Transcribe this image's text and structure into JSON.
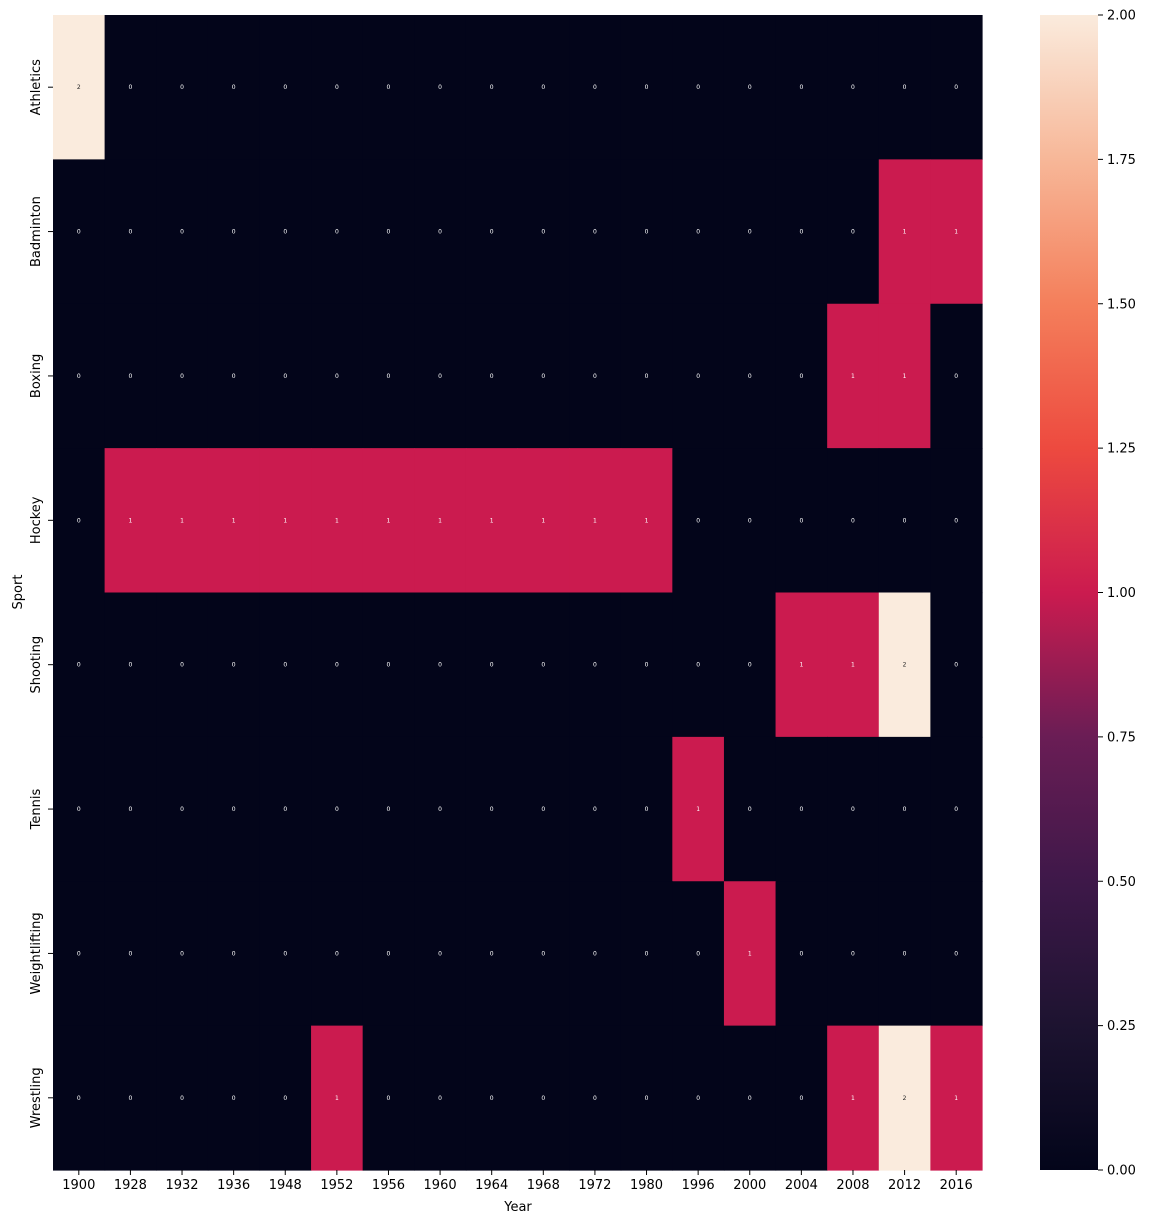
{
  "chart_data": {
    "type": "heatmap",
    "title": "",
    "xlabel": "Year",
    "ylabel": "Sport",
    "x_categories": [
      "1900",
      "1928",
      "1932",
      "1936",
      "1948",
      "1952",
      "1956",
      "1960",
      "1964",
      "1968",
      "1972",
      "1980",
      "1996",
      "2000",
      "2004",
      "2008",
      "2012",
      "2016"
    ],
    "y_categories": [
      "Athletics",
      "Badminton",
      "Boxing",
      "Hockey",
      "Shooting",
      "Tennis",
      "Weightlifting",
      "Wrestling"
    ],
    "values": [
      [
        2,
        0,
        0,
        0,
        0,
        0,
        0,
        0,
        0,
        0,
        0,
        0,
        0,
        0,
        0,
        0,
        0,
        0
      ],
      [
        0,
        0,
        0,
        0,
        0,
        0,
        0,
        0,
        0,
        0,
        0,
        0,
        0,
        0,
        0,
        0,
        1,
        1
      ],
      [
        0,
        0,
        0,
        0,
        0,
        0,
        0,
        0,
        0,
        0,
        0,
        0,
        0,
        0,
        0,
        1,
        1,
        0
      ],
      [
        0,
        1,
        1,
        1,
        1,
        1,
        1,
        1,
        1,
        1,
        1,
        1,
        0,
        0,
        0,
        0,
        0,
        0
      ],
      [
        0,
        0,
        0,
        0,
        0,
        0,
        0,
        0,
        0,
        0,
        0,
        0,
        0,
        0,
        1,
        1,
        2,
        0
      ],
      [
        0,
        0,
        0,
        0,
        0,
        0,
        0,
        0,
        0,
        0,
        0,
        0,
        1,
        0,
        0,
        0,
        0,
        0
      ],
      [
        0,
        0,
        0,
        0,
        0,
        0,
        0,
        0,
        0,
        0,
        0,
        0,
        0,
        1,
        0,
        0,
        0,
        0
      ],
      [
        0,
        0,
        0,
        0,
        0,
        1,
        0,
        0,
        0,
        0,
        0,
        0,
        0,
        0,
        0,
        1,
        2,
        1
      ]
    ],
    "colorscale": {
      "name": "rocket",
      "min": 0,
      "max": 2,
      "ticks": [
        "0.00",
        "0.25",
        "0.50",
        "0.75",
        "1.00",
        "1.25",
        "1.50",
        "1.75",
        "2.00"
      ],
      "colors": {
        "0": "#03051a",
        "1": "#cb1b4f",
        "2": "#faebdd"
      }
    },
    "annotate_cells": true,
    "grid": false,
    "legend": "colorbar-right"
  }
}
